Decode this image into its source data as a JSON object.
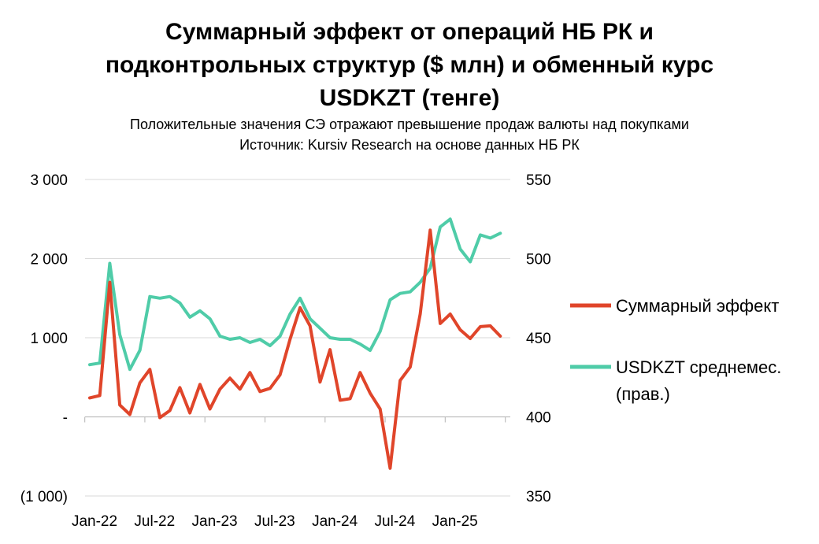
{
  "chart_data": {
    "type": "line",
    "title_lines": [
      "Суммарный эффект от операций НБ РК и",
      "подконтрольных структур ($ млн) и обменный курс",
      "USDKZT (тенге)"
    ],
    "subtitle_lines": [
      "Положительные значения СЭ отражают превышение продаж валюты над покупками",
      "Источник: Kursiv Research на основе данных НБ РК"
    ],
    "x_tick_labels": [
      "Jan-22",
      "Jul-22",
      "Jan-23",
      "Jul-23",
      "Jan-24",
      "Jul-24",
      "Jan-25"
    ],
    "x_tick_index": [
      0,
      6,
      12,
      18,
      24,
      30,
      36
    ],
    "n_points": 42,
    "y_left": {
      "range": [
        -1000,
        3000
      ],
      "ticks": [
        -1000,
        0,
        1000,
        2000,
        3000
      ],
      "tick_labels": [
        "(1 000)",
        "-",
        "1 000",
        "2 000",
        "3 000"
      ]
    },
    "y_right": {
      "range": [
        350,
        550
      ],
      "ticks": [
        350,
        400,
        450,
        500,
        550
      ],
      "tick_labels": [
        "350",
        "400",
        "450",
        "500",
        "550"
      ]
    },
    "grid": "horizontal",
    "legend_position": "right",
    "series": [
      {
        "name": "Суммарный эффект",
        "axis": "left",
        "color": "#e0452a",
        "values": [
          240,
          270,
          1700,
          150,
          30,
          430,
          600,
          -10,
          80,
          370,
          50,
          410,
          100,
          350,
          490,
          350,
          560,
          320,
          360,
          530,
          980,
          1380,
          1150,
          440,
          850,
          210,
          230,
          560,
          300,
          100,
          -650,
          460,
          630,
          1300,
          2360,
          1180,
          1300,
          1100,
          990,
          1140,
          1150,
          1020
        ]
      },
      {
        "name": "USDKZT среднемес.",
        "name_line2": "(прав.)",
        "axis": "right",
        "color": "#4fcca8",
        "values": [
          433,
          434,
          497,
          452,
          430,
          442,
          476,
          475,
          476,
          472,
          463,
          467,
          462,
          451,
          449,
          450,
          447,
          449,
          445,
          451,
          465,
          475,
          462,
          456,
          450,
          449,
          449,
          446,
          442,
          454,
          474,
          478,
          479,
          485,
          494,
          520,
          525,
          506,
          498,
          515,
          513,
          516
        ]
      }
    ]
  }
}
